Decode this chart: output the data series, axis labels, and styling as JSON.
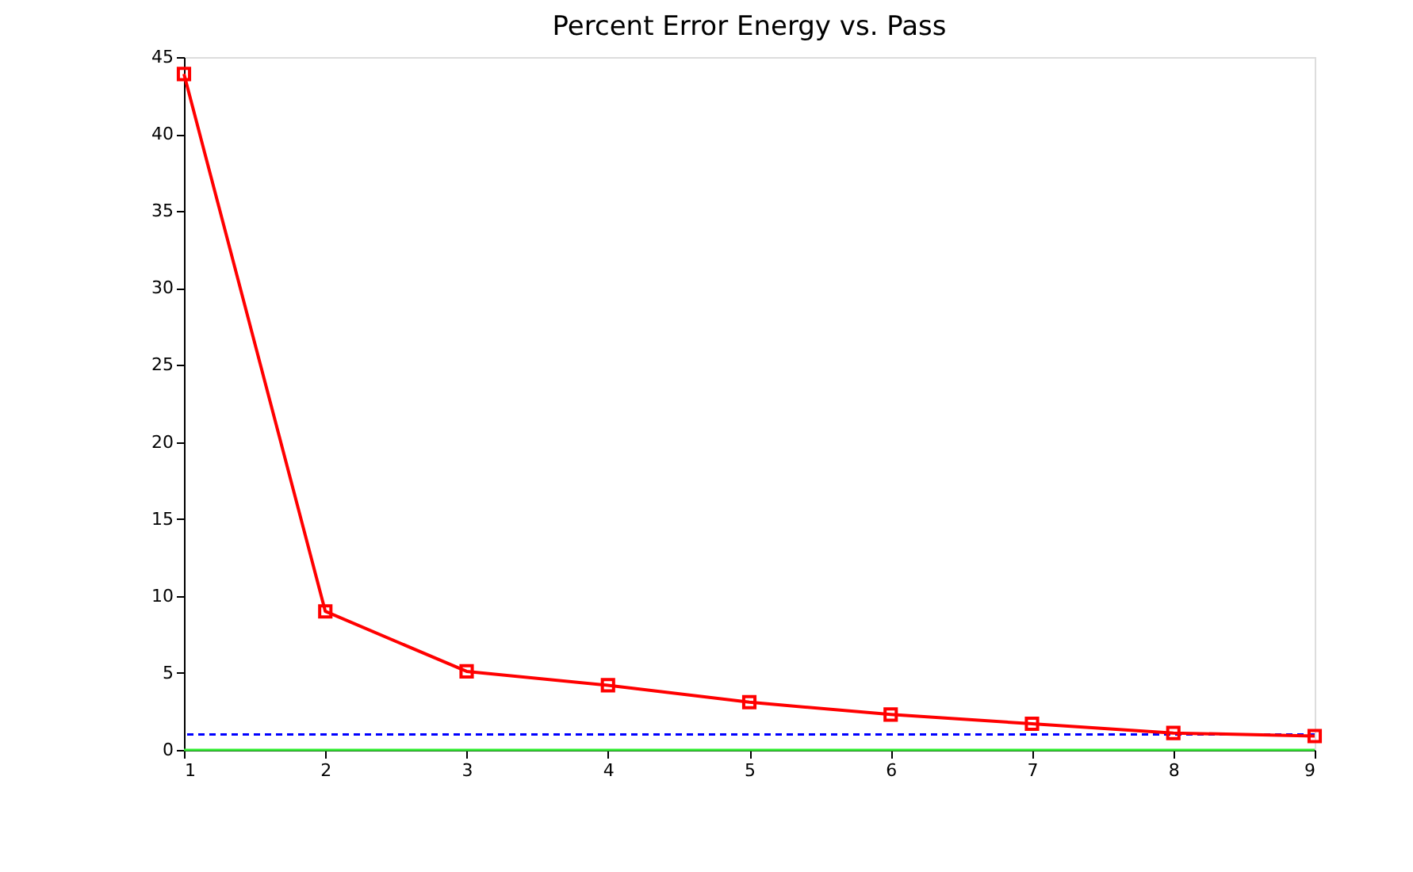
{
  "chart_data": {
    "type": "line",
    "title": "Percent Error Energy vs. Pass",
    "x": [
      1,
      2,
      3,
      4,
      5,
      6,
      7,
      8,
      9
    ],
    "series": [
      {
        "color": "#ff0000",
        "values": [
          43.9,
          9.0,
          5.1,
          4.2,
          3.1,
          2.3,
          1.7,
          1.1,
          0.9
        ]
      }
    ],
    "xlim": [
      1,
      9
    ],
    "xticks": [
      1,
      2,
      3,
      4,
      5,
      6,
      7,
      8,
      9
    ],
    "ylim": [
      0,
      45
    ],
    "yticks": [
      0,
      5,
      10,
      15,
      20,
      25,
      30,
      35,
      40,
      45
    ],
    "ref_lines": [
      {
        "axis": "y",
        "value": 1,
        "color": "#0000ff",
        "line_style": "dashed"
      },
      {
        "axis": "y",
        "value": 0,
        "color": "#33ee33",
        "line_style": "solid"
      }
    ],
    "marker": "square",
    "line_style": "solid"
  }
}
